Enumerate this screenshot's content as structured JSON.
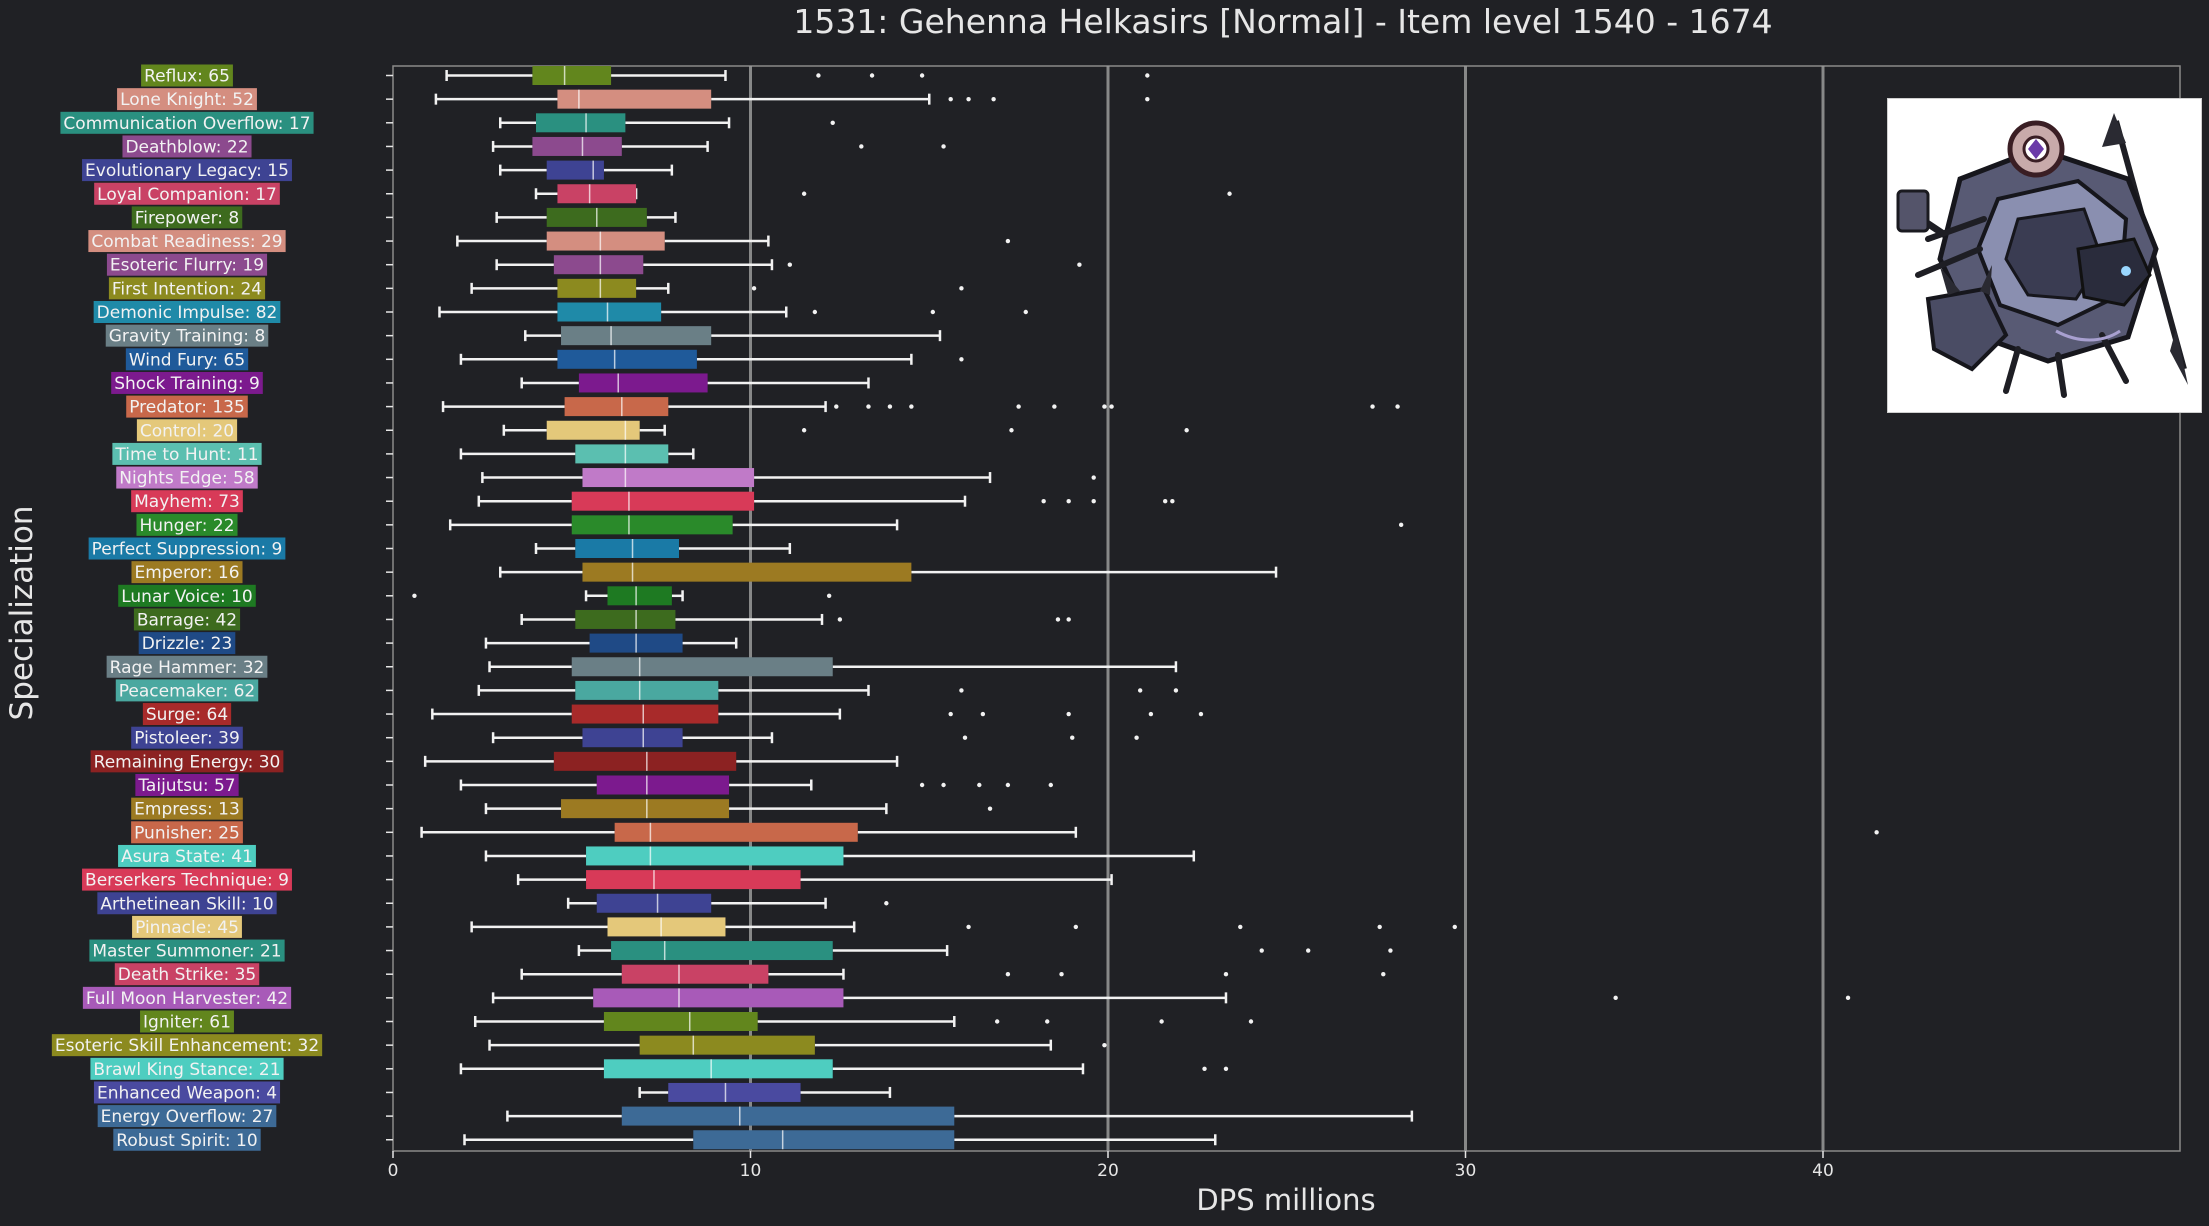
{
  "chart_data": {
    "type": "boxplot",
    "title": "1531: Gehenna Helkasirs [Normal] - Item level 1540 - 1674",
    "xlabel": "DPS millions",
    "ylabel": "Specialization",
    "xlim": [
      0,
      50
    ],
    "xticks": [
      0,
      10,
      20,
      30,
      40
    ],
    "grid": "vertical lines at 10, 20, 30, 40",
    "legend": "none",
    "series": [
      {
        "label": "Reflux: 65",
        "color": "#62861d",
        "whislo": 1.5,
        "q1": 3.9,
        "med": 4.8,
        "q3": 6.1,
        "whishi": 9.3,
        "fliers": [
          11.9,
          13.4,
          14.8,
          21.1
        ]
      },
      {
        "label": "Lone Knight: 52",
        "color": "#d48e80",
        "whislo": 1.2,
        "q1": 4.6,
        "med": 5.2,
        "q3": 8.9,
        "whishi": 15.0,
        "fliers": [
          15.6,
          16.1,
          16.8,
          21.1
        ]
      },
      {
        "label": "Communication Overflow: 17",
        "color": "#2a9080",
        "whislo": 3.0,
        "q1": 4.0,
        "med": 5.4,
        "q3": 6.5,
        "whishi": 9.4,
        "fliers": [
          12.3
        ]
      },
      {
        "label": "Deathblow: 22",
        "color": "#8c4a8e",
        "whislo": 2.8,
        "q1": 3.9,
        "med": 5.3,
        "q3": 6.4,
        "whishi": 8.8,
        "fliers": [
          13.1,
          15.4
        ]
      },
      {
        "label": "Evolutionary Legacy: 15",
        "color": "#3e4393",
        "whislo": 3.0,
        "q1": 4.3,
        "med": 5.6,
        "q3": 5.9,
        "whishi": 7.8,
        "fliers": []
      },
      {
        "label": "Loyal Companion: 17",
        "color": "#c94265",
        "whislo": 4.0,
        "q1": 4.6,
        "med": 5.5,
        "q3": 6.8,
        "whishi": 6.8,
        "fliers": [
          11.5,
          23.4
        ]
      },
      {
        "label": "Firepower: 8",
        "color": "#3d6b1e",
        "whislo": 2.9,
        "q1": 4.3,
        "med": 5.7,
        "q3": 7.1,
        "whishi": 7.9,
        "fliers": []
      },
      {
        "label": "Combat Readiness: 29",
        "color": "#d48e80",
        "whislo": 1.8,
        "q1": 4.3,
        "med": 5.8,
        "q3": 7.6,
        "whishi": 10.5,
        "fliers": [
          17.2
        ]
      },
      {
        "label": "Esoteric Flurry: 19",
        "color": "#8c4a8e",
        "whislo": 2.9,
        "q1": 4.5,
        "med": 5.8,
        "q3": 7.0,
        "whishi": 10.6,
        "fliers": [
          11.1,
          19.2
        ]
      },
      {
        "label": "First Intention: 24",
        "color": "#8c8a1f",
        "whislo": 2.2,
        "q1": 4.6,
        "med": 5.8,
        "q3": 6.8,
        "whishi": 7.7,
        "fliers": [
          10.1,
          15.9
        ]
      },
      {
        "label": "Demonic Impulse: 82",
        "color": "#1f8aa8",
        "whislo": 1.3,
        "q1": 4.6,
        "med": 6.0,
        "q3": 7.5,
        "whishi": 11.0,
        "fliers": [
          11.8,
          15.1,
          17.7
        ]
      },
      {
        "label": "Gravity Training: 8",
        "color": "#6a7f86",
        "whislo": 3.7,
        "q1": 4.7,
        "med": 6.1,
        "q3": 8.9,
        "whishi": 15.3,
        "fliers": []
      },
      {
        "label": "Wind Fury: 65",
        "color": "#1f5a9a",
        "whislo": 1.9,
        "q1": 4.6,
        "med": 6.2,
        "q3": 8.5,
        "whishi": 14.5,
        "fliers": [
          15.9
        ]
      },
      {
        "label": "Shock Training: 9",
        "color": "#7c1a8e",
        "whislo": 3.6,
        "q1": 5.2,
        "med": 6.3,
        "q3": 8.8,
        "whishi": 13.3,
        "fliers": []
      },
      {
        "label": "Predator: 135",
        "color": "#c8684a",
        "whislo": 1.4,
        "q1": 4.8,
        "med": 6.4,
        "q3": 7.7,
        "whishi": 12.1,
        "fliers": [
          12.4,
          13.3,
          13.9,
          14.5,
          17.5,
          18.5,
          19.9,
          20.1,
          27.4,
          28.1
        ]
      },
      {
        "label": "Control: 20",
        "color": "#e4c87a",
        "whislo": 3.1,
        "q1": 4.3,
        "med": 6.5,
        "q3": 6.9,
        "whishi": 7.6,
        "fliers": [
          11.5,
          17.3,
          22.2
        ]
      },
      {
        "label": "Time to Hunt: 11",
        "color": "#5bbfb0",
        "whislo": 1.9,
        "q1": 5.1,
        "med": 6.5,
        "q3": 7.7,
        "whishi": 8.4,
        "fliers": []
      },
      {
        "label": "Nights Edge: 58",
        "color": "#c07ac8",
        "whislo": 2.5,
        "q1": 5.3,
        "med": 6.5,
        "q3": 10.1,
        "whishi": 16.7,
        "fliers": [
          19.6
        ]
      },
      {
        "label": "Mayhem: 73",
        "color": "#d83a58",
        "whislo": 2.4,
        "q1": 5.0,
        "med": 6.6,
        "q3": 10.1,
        "whishi": 16.0,
        "fliers": [
          18.2,
          18.9,
          19.6,
          21.6,
          21.8
        ]
      },
      {
        "label": "Hunger: 22",
        "color": "#2a8a2a",
        "whislo": 1.6,
        "q1": 5.0,
        "med": 6.6,
        "q3": 9.5,
        "whishi": 14.1,
        "fliers": [
          28.2
        ]
      },
      {
        "label": "Perfect Suppression: 9",
        "color": "#1a7aa6",
        "whislo": 4.0,
        "q1": 5.1,
        "med": 6.7,
        "q3": 8.0,
        "whishi": 11.1,
        "fliers": []
      },
      {
        "label": "Emperor: 16",
        "color": "#9c7a22",
        "whislo": 3.0,
        "q1": 5.3,
        "med": 6.7,
        "q3": 14.5,
        "whishi": 24.7,
        "fliers": []
      },
      {
        "label": "Lunar Voice: 10",
        "color": "#1e7a22",
        "whislo": 5.4,
        "q1": 6.0,
        "med": 6.8,
        "q3": 7.8,
        "whishi": 8.1,
        "fliers": [
          0.6,
          12.2
        ]
      },
      {
        "label": "Barrage: 42",
        "color": "#3d6b1e",
        "whislo": 3.6,
        "q1": 5.1,
        "med": 6.8,
        "q3": 7.9,
        "whishi": 12.0,
        "fliers": [
          12.5,
          18.6,
          18.9
        ]
      },
      {
        "label": "Drizzle: 23",
        "color": "#1f4a86",
        "whislo": 2.6,
        "q1": 5.5,
        "med": 6.8,
        "q3": 8.1,
        "whishi": 9.6,
        "fliers": []
      },
      {
        "label": "Rage Hammer: 32",
        "color": "#6a7f86",
        "whislo": 2.7,
        "q1": 5.0,
        "med": 6.9,
        "q3": 12.3,
        "whishi": 21.9,
        "fliers": []
      },
      {
        "label": "Peacemaker: 62",
        "color": "#4aa8a0",
        "whislo": 2.4,
        "q1": 5.1,
        "med": 6.9,
        "q3": 9.1,
        "whishi": 13.3,
        "fliers": [
          15.9,
          20.9,
          21.9
        ]
      },
      {
        "label": "Surge: 64",
        "color": "#a82a2a",
        "whislo": 1.1,
        "q1": 5.0,
        "med": 7.0,
        "q3": 9.1,
        "whishi": 12.5,
        "fliers": [
          15.6,
          16.5,
          18.9,
          21.2,
          22.6
        ]
      },
      {
        "label": "Pistoleer: 39",
        "color": "#3e4393",
        "whislo": 2.8,
        "q1": 5.3,
        "med": 7.0,
        "q3": 8.1,
        "whishi": 10.6,
        "fliers": [
          16.0,
          19.0,
          20.8
        ]
      },
      {
        "label": "Remaining Energy: 30",
        "color": "#8c2222",
        "whislo": 0.9,
        "q1": 4.5,
        "med": 7.1,
        "q3": 9.6,
        "whishi": 14.1,
        "fliers": []
      },
      {
        "label": "Taijutsu: 57",
        "color": "#7c1a8e",
        "whislo": 1.9,
        "q1": 5.7,
        "med": 7.1,
        "q3": 9.4,
        "whishi": 11.7,
        "fliers": [
          14.8,
          15.4,
          16.4,
          17.2,
          18.4
        ]
      },
      {
        "label": "Empress: 13",
        "color": "#9c7a22",
        "whislo": 2.6,
        "q1": 4.7,
        "med": 7.1,
        "q3": 9.4,
        "whishi": 13.8,
        "fliers": [
          16.7
        ]
      },
      {
        "label": "Punisher: 25",
        "color": "#c8684a",
        "whislo": 0.8,
        "q1": 6.2,
        "med": 7.2,
        "q3": 13.0,
        "whishi": 19.1,
        "fliers": [
          41.5
        ]
      },
      {
        "label": "Asura State: 41",
        "color": "#4ecdc0",
        "whislo": 2.6,
        "q1": 5.4,
        "med": 7.2,
        "q3": 12.6,
        "whishi": 22.4,
        "fliers": []
      },
      {
        "label": "Berserkers Technique: 9",
        "color": "#d83a58",
        "whislo": 3.5,
        "q1": 5.4,
        "med": 7.3,
        "q3": 11.4,
        "whishi": 20.1,
        "fliers": []
      },
      {
        "label": "Arthetinean Skill: 10",
        "color": "#3e4393",
        "whislo": 4.9,
        "q1": 5.7,
        "med": 7.4,
        "q3": 8.9,
        "whishi": 12.1,
        "fliers": [
          13.8
        ]
      },
      {
        "label": "Pinnacle: 45",
        "color": "#e4c87a",
        "whislo": 2.2,
        "q1": 6.0,
        "med": 7.5,
        "q3": 9.3,
        "whishi": 12.9,
        "fliers": [
          16.1,
          19.1,
          23.7,
          27.6,
          29.7
        ]
      },
      {
        "label": "Master Summoner: 21",
        "color": "#2a9080",
        "whislo": 5.2,
        "q1": 6.1,
        "med": 7.6,
        "q3": 12.3,
        "whishi": 15.5,
        "fliers": [
          24.3,
          25.6,
          27.9
        ]
      },
      {
        "label": "Death Strike: 35",
        "color": "#c94265",
        "whislo": 3.6,
        "q1": 6.4,
        "med": 8.0,
        "q3": 10.5,
        "whishi": 12.6,
        "fliers": [
          17.2,
          18.7,
          23.3,
          27.7
        ]
      },
      {
        "label": "Full Moon Harvester: 42",
        "color": "#a85ab8",
        "whislo": 2.8,
        "q1": 5.6,
        "med": 8.0,
        "q3": 12.6,
        "whishi": 23.3,
        "fliers": [
          34.2,
          40.7
        ]
      },
      {
        "label": "Igniter: 61",
        "color": "#62861d",
        "whislo": 2.3,
        "q1": 5.9,
        "med": 8.3,
        "q3": 10.2,
        "whishi": 15.7,
        "fliers": [
          16.9,
          18.3,
          21.5,
          24.0
        ]
      },
      {
        "label": "Esoteric Skill Enhancement: 32",
        "color": "#8c8a1f",
        "whislo": 2.7,
        "q1": 6.9,
        "med": 8.4,
        "q3": 11.8,
        "whishi": 18.4,
        "fliers": [
          19.9
        ]
      },
      {
        "label": "Brawl King Stance: 21",
        "color": "#4ecdc0",
        "whislo": 1.9,
        "q1": 5.9,
        "med": 8.9,
        "q3": 12.3,
        "whishi": 19.3,
        "fliers": [
          22.7,
          23.3
        ]
      },
      {
        "label": "Enhanced Weapon: 4",
        "color": "#4a4aa0",
        "whislo": 6.9,
        "q1": 7.7,
        "med": 9.3,
        "q3": 11.4,
        "whishi": 13.9,
        "fliers": []
      },
      {
        "label": "Energy Overflow: 27",
        "color": "#3d6a96",
        "whislo": 3.2,
        "q1": 6.4,
        "med": 9.7,
        "q3": 15.7,
        "whishi": 28.5,
        "fliers": []
      },
      {
        "label": "Robust Spirit: 10",
        "color": "#3d6a96",
        "whislo": 2.0,
        "q1": 8.4,
        "med": 10.9,
        "q3": 15.7,
        "whishi": 23.0,
        "fliers": []
      }
    ]
  },
  "colors": {
    "background": "#202125",
    "grid": "#9a9a9a",
    "text": "#e6e6e6",
    "whisker": "#f2f2f2"
  },
  "portrait": {
    "icon": "boss-portrait-icon"
  }
}
